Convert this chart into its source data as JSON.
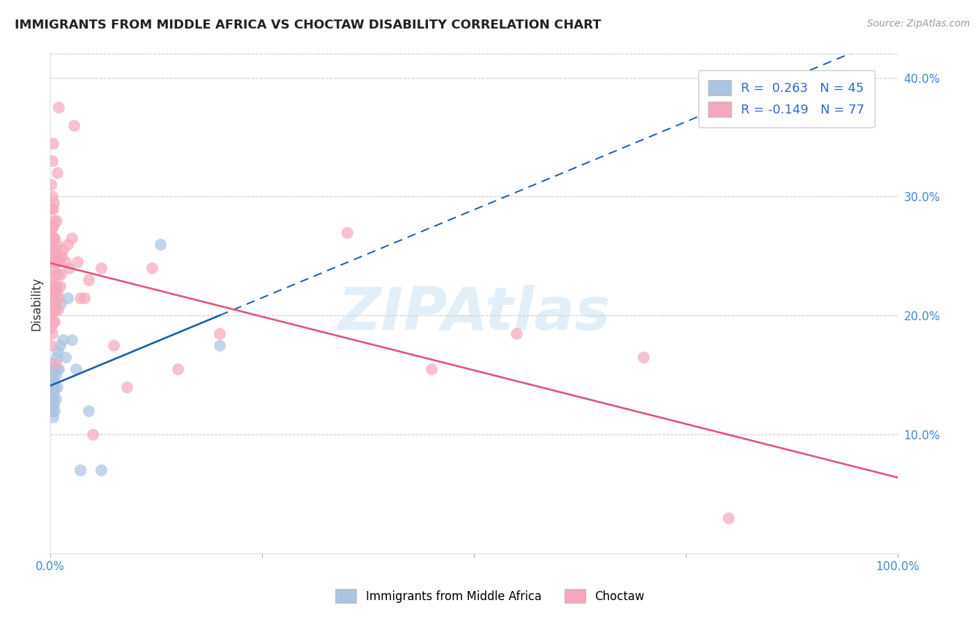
{
  "title": "IMMIGRANTS FROM MIDDLE AFRICA VS CHOCTAW DISABILITY CORRELATION CHART",
  "source_text": "Source: ZipAtlas.com",
  "ylabel": "Disability",
  "xlim": [
    0,
    1.0
  ],
  "ylim": [
    0,
    0.42
  ],
  "yticks": [
    0.1,
    0.2,
    0.3,
    0.4
  ],
  "yticklabels": [
    "10.0%",
    "20.0%",
    "30.0%",
    "40.0%"
  ],
  "blue_R": 0.263,
  "blue_N": 45,
  "pink_R": -0.149,
  "pink_N": 77,
  "blue_color": "#aac4e2",
  "pink_color": "#f5a8bc",
  "blue_line_color": "#2060a8",
  "pink_line_color": "#e05878",
  "watermark": "ZIPAtlas",
  "legend_blue_label": "Immigrants from Middle Africa",
  "legend_pink_label": "Choctaw",
  "blue_scatter_x": [
    0.001,
    0.001,
    0.001,
    0.001,
    0.001,
    0.001,
    0.001,
    0.001,
    0.001,
    0.001,
    0.002,
    0.002,
    0.002,
    0.002,
    0.002,
    0.002,
    0.003,
    0.003,
    0.003,
    0.003,
    0.003,
    0.004,
    0.004,
    0.004,
    0.005,
    0.005,
    0.006,
    0.006,
    0.007,
    0.008,
    0.008,
    0.009,
    0.01,
    0.011,
    0.012,
    0.015,
    0.018,
    0.02,
    0.025,
    0.03,
    0.035,
    0.045,
    0.06,
    0.13,
    0.2
  ],
  "blue_scatter_y": [
    0.135,
    0.13,
    0.125,
    0.125,
    0.13,
    0.14,
    0.145,
    0.15,
    0.155,
    0.16,
    0.12,
    0.125,
    0.13,
    0.135,
    0.14,
    0.15,
    0.115,
    0.12,
    0.13,
    0.14,
    0.155,
    0.125,
    0.135,
    0.145,
    0.12,
    0.14,
    0.13,
    0.15,
    0.165,
    0.14,
    0.155,
    0.17,
    0.155,
    0.175,
    0.21,
    0.18,
    0.165,
    0.215,
    0.18,
    0.155,
    0.07,
    0.12,
    0.07,
    0.26,
    0.175
  ],
  "pink_scatter_x": [
    0.001,
    0.001,
    0.001,
    0.001,
    0.001,
    0.001,
    0.001,
    0.001,
    0.002,
    0.002,
    0.002,
    0.002,
    0.002,
    0.002,
    0.002,
    0.003,
    0.003,
    0.003,
    0.003,
    0.003,
    0.003,
    0.004,
    0.004,
    0.004,
    0.004,
    0.004,
    0.005,
    0.005,
    0.005,
    0.005,
    0.006,
    0.006,
    0.006,
    0.007,
    0.007,
    0.007,
    0.008,
    0.008,
    0.009,
    0.01,
    0.01,
    0.011,
    0.012,
    0.013,
    0.015,
    0.018,
    0.02,
    0.022,
    0.025,
    0.028,
    0.032,
    0.035,
    0.04,
    0.045,
    0.05,
    0.06,
    0.075,
    0.09,
    0.12,
    0.15,
    0.2,
    0.35,
    0.45,
    0.55,
    0.7,
    0.8,
    0.001,
    0.002,
    0.003,
    0.004,
    0.005,
    0.006,
    0.007,
    0.008,
    0.009,
    0.01,
    0.012
  ],
  "pink_scatter_y": [
    0.175,
    0.19,
    0.2,
    0.215,
    0.22,
    0.23,
    0.27,
    0.29,
    0.185,
    0.21,
    0.225,
    0.245,
    0.26,
    0.275,
    0.3,
    0.195,
    0.215,
    0.24,
    0.255,
    0.275,
    0.29,
    0.205,
    0.225,
    0.245,
    0.265,
    0.28,
    0.195,
    0.22,
    0.25,
    0.265,
    0.21,
    0.235,
    0.255,
    0.225,
    0.245,
    0.26,
    0.22,
    0.245,
    0.235,
    0.215,
    0.245,
    0.225,
    0.235,
    0.25,
    0.255,
    0.245,
    0.26,
    0.24,
    0.265,
    0.36,
    0.245,
    0.215,
    0.215,
    0.23,
    0.1,
    0.24,
    0.175,
    0.14,
    0.24,
    0.155,
    0.185,
    0.27,
    0.155,
    0.185,
    0.165,
    0.03,
    0.31,
    0.33,
    0.345,
    0.295,
    0.205,
    0.16,
    0.28,
    0.32,
    0.205,
    0.375,
    0.25
  ]
}
